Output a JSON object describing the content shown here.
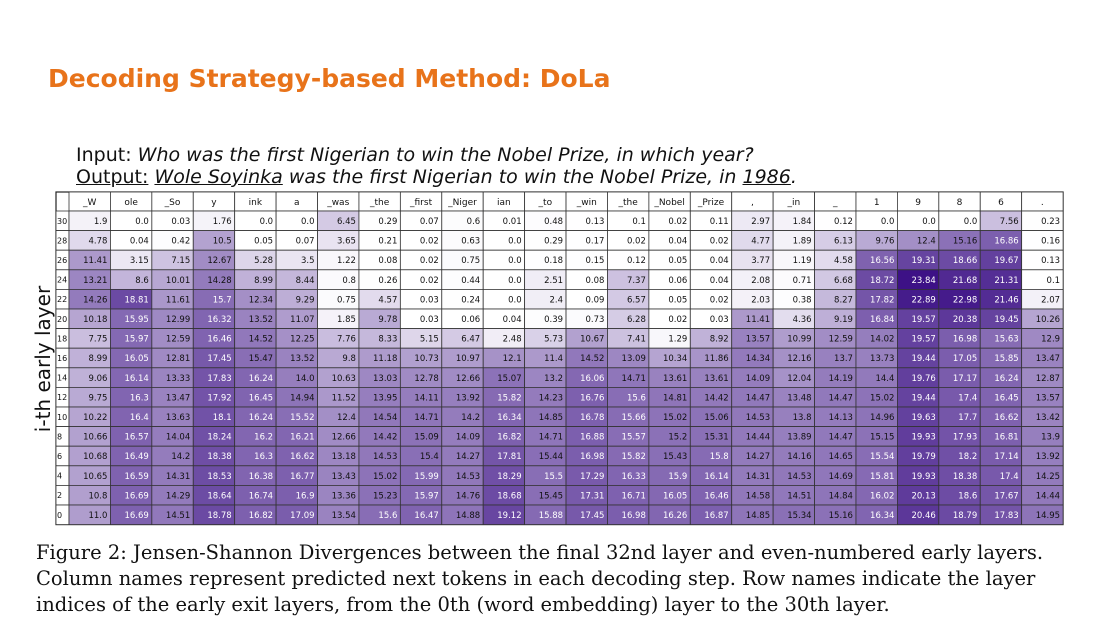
{
  "title": "Decoding Strategy-based Method: DoLa",
  "input": {
    "label": "Input:",
    "text": "Who was the first Nigerian to win the Nobel Prize, in which year?"
  },
  "output": {
    "label": "Output:",
    "part1": "Wole Soyinka",
    "part2": "was the first Nigerian to win the Nobel Prize, in",
    "part3": "1986",
    "part4": "."
  },
  "caption": "Figure 2: Jensen-Shannon Divergences between the final 32nd layer and even-numbered early layers. Column names represent predicted next tokens in each decoding step. Row names indicate the layer indices of the early exit layers, from the 0th (word embedding) layer to the 30th layer.",
  "chart_data": {
    "type": "heatmap",
    "ylabel": "i-th early layer",
    "columns": [
      "_W",
      "ole",
      "_So",
      "y",
      "ink",
      "a",
      "_was",
      "_the",
      "_first",
      "_Niger",
      "ian",
      "_to",
      "_win",
      "_the",
      "_Nobel",
      "_Prize",
      ",",
      "_in",
      "_",
      "1",
      "9",
      "8",
      "6",
      "."
    ],
    "rows": [
      "30",
      "28",
      "26",
      "24",
      "22",
      "20",
      "18",
      "16",
      "14",
      "12",
      "10",
      "8",
      "6",
      "4",
      "2",
      "0"
    ],
    "values": [
      [
        1.9,
        0.0,
        0.03,
        1.76,
        0.0,
        0.0,
        6.45,
        0.29,
        0.07,
        0.6,
        0.01,
        0.48,
        0.13,
        0.1,
        0.02,
        0.11,
        2.97,
        1.84,
        0.12,
        0.0,
        0.0,
        0.0,
        7.56,
        0.23
      ],
      [
        4.78,
        0.04,
        0.42,
        10.5,
        0.05,
        0.07,
        3.65,
        0.21,
        0.02,
        0.63,
        0.0,
        0.29,
        0.17,
        0.02,
        0.04,
        0.02,
        4.77,
        1.89,
        6.13,
        9.76,
        12.4,
        15.16,
        16.86,
        0.16
      ],
      [
        11.41,
        3.15,
        7.15,
        12.67,
        5.28,
        3.5,
        1.22,
        0.08,
        0.02,
        0.75,
        0.0,
        0.18,
        0.15,
        0.12,
        0.05,
        0.04,
        3.77,
        1.19,
        4.58,
        16.56,
        19.31,
        18.66,
        19.67,
        0.13
      ],
      [
        13.21,
        8.6,
        10.01,
        14.28,
        8.99,
        8.44,
        0.8,
        0.26,
        0.02,
        0.44,
        0.0,
        2.51,
        0.08,
        7.37,
        0.06,
        0.04,
        2.08,
        0.71,
        6.68,
        18.72,
        23.84,
        21.68,
        21.31,
        0.1
      ],
      [
        14.26,
        18.81,
        11.61,
        15.7,
        12.34,
        9.29,
        0.75,
        4.57,
        0.03,
        0.24,
        0.0,
        2.4,
        0.09,
        6.57,
        0.05,
        0.02,
        2.03,
        0.38,
        8.27,
        17.82,
        22.89,
        22.98,
        21.46,
        2.07
      ],
      [
        10.18,
        15.95,
        12.99,
        16.32,
        13.52,
        11.07,
        1.85,
        9.78,
        0.03,
        0.06,
        0.04,
        0.39,
        0.73,
        6.28,
        0.02,
        0.03,
        11.41,
        4.36,
        9.19,
        16.84,
        19.57,
        20.38,
        19.45,
        10.26
      ],
      [
        7.75,
        15.97,
        12.59,
        16.46,
        14.52,
        12.25,
        7.76,
        8.33,
        5.15,
        6.47,
        2.48,
        5.73,
        10.67,
        7.41,
        1.29,
        8.92,
        13.57,
        10.99,
        12.59,
        14.02,
        19.57,
        16.98,
        15.63,
        12.9
      ],
      [
        8.99,
        16.05,
        12.81,
        17.45,
        15.47,
        13.52,
        9.8,
        11.18,
        10.73,
        10.97,
        12.1,
        11.4,
        14.52,
        13.09,
        10.34,
        11.86,
        14.34,
        12.16,
        13.7,
        13.73,
        19.44,
        17.05,
        15.85,
        13.47
      ],
      [
        9.06,
        16.14,
        13.33,
        17.83,
        16.24,
        14.0,
        10.63,
        13.03,
        12.78,
        12.66,
        15.07,
        13.2,
        16.06,
        14.71,
        13.61,
        13.61,
        14.09,
        12.04,
        14.19,
        14.4,
        19.76,
        17.17,
        16.24,
        12.87
      ],
      [
        9.75,
        16.3,
        13.47,
        17.92,
        16.45,
        14.94,
        11.52,
        13.95,
        14.11,
        13.92,
        15.82,
        14.23,
        16.76,
        15.6,
        14.81,
        14.42,
        14.47,
        13.48,
        14.47,
        15.02,
        19.44,
        17.4,
        16.45,
        13.57
      ],
      [
        10.22,
        16.4,
        13.63,
        18.1,
        16.24,
        15.52,
        12.4,
        14.54,
        14.71,
        14.2,
        16.34,
        14.85,
        16.78,
        15.66,
        15.02,
        15.06,
        14.53,
        13.8,
        14.13,
        14.96,
        19.63,
        17.7,
        16.62,
        13.42
      ],
      [
        10.66,
        16.57,
        14.04,
        18.24,
        16.2,
        16.21,
        12.66,
        14.42,
        15.09,
        14.09,
        16.82,
        14.71,
        16.88,
        15.57,
        15.2,
        15.31,
        14.44,
        13.89,
        14.47,
        15.15,
        19.93,
        17.93,
        16.81,
        13.9
      ],
      [
        10.68,
        16.49,
        14.2,
        18.38,
        16.3,
        16.62,
        13.18,
        14.53,
        15.4,
        14.27,
        17.81,
        15.44,
        16.98,
        15.82,
        15.43,
        15.8,
        14.27,
        14.16,
        14.65,
        15.54,
        19.79,
        18.2,
        17.14,
        13.92
      ],
      [
        10.65,
        16.59,
        14.31,
        18.53,
        16.38,
        16.77,
        13.43,
        15.02,
        15.99,
        14.53,
        18.29,
        15.5,
        17.29,
        16.33,
        15.9,
        16.14,
        14.31,
        14.53,
        14.69,
        15.81,
        19.93,
        18.38,
        17.4,
        14.25
      ],
      [
        10.8,
        16.69,
        14.29,
        18.64,
        16.74,
        16.9,
        13.36,
        15.23,
        15.97,
        14.76,
        18.68,
        15.45,
        17.31,
        16.71,
        16.05,
        16.46,
        14.58,
        14.51,
        14.84,
        16.02,
        20.13,
        18.6,
        17.67,
        14.44
      ],
      [
        11.0,
        16.69,
        14.51,
        18.78,
        16.82,
        17.09,
        13.54,
        15.6,
        16.47,
        14.88,
        19.12,
        15.88,
        17.45,
        16.98,
        16.26,
        16.87,
        14.85,
        15.34,
        15.16,
        16.34,
        20.46,
        18.79,
        17.83,
        14.95
      ]
    ],
    "colorscale": {
      "low": "#ffffff",
      "high": "#3b0f85"
    },
    "vmin": 0,
    "vmax": 24
  }
}
